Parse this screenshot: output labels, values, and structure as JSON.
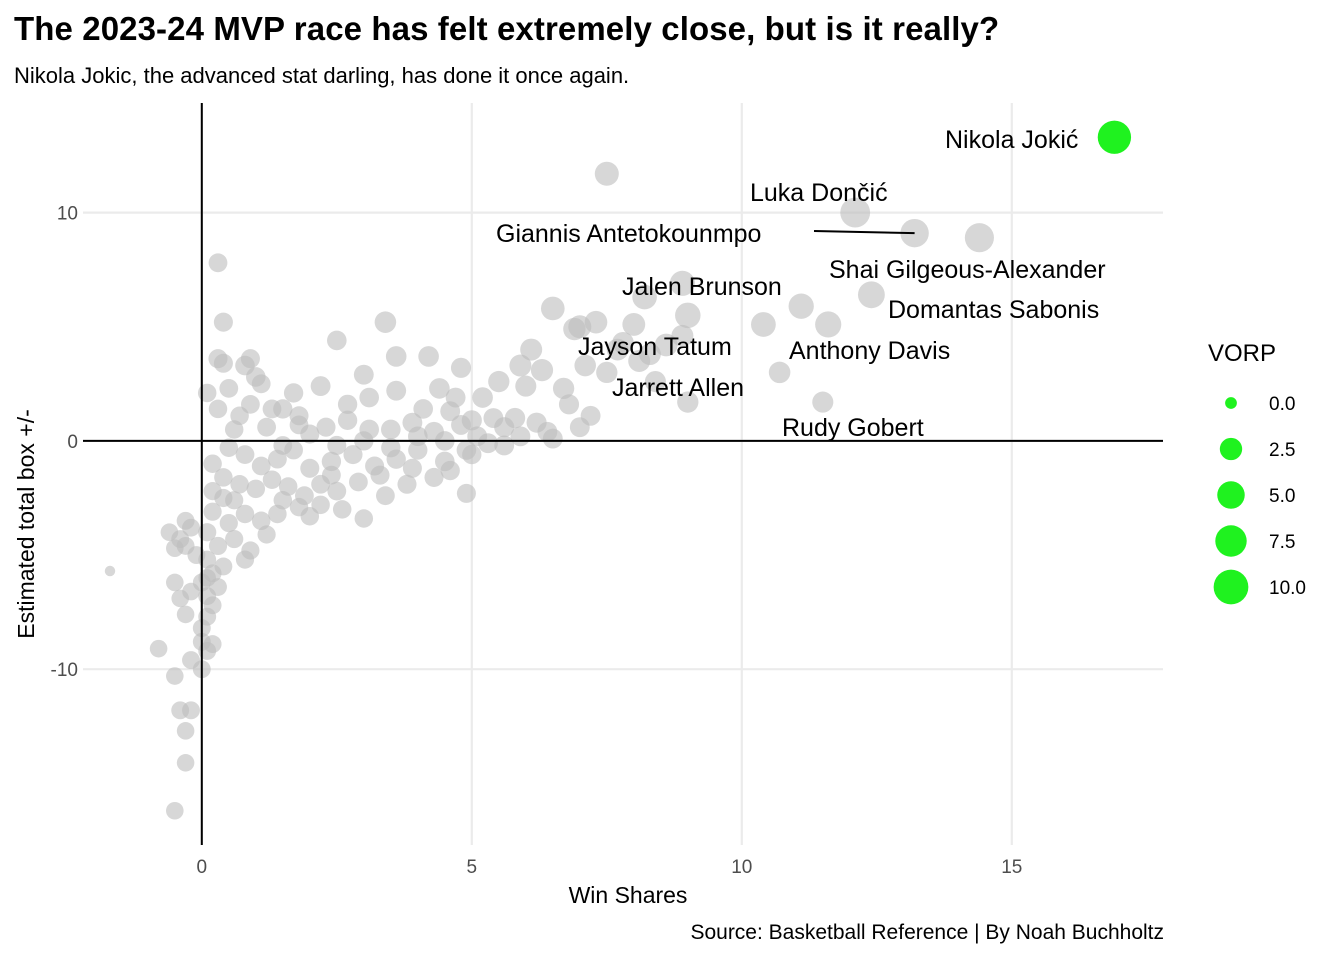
{
  "title": "The 2023-24 MVP race has felt extremely close, but is it really?",
  "subtitle": "Nikola Jokic, the advanced stat darling, has done it once again.",
  "caption": "Source: Basketball Reference | By Noah Buchholtz",
  "chart_data": {
    "type": "scatter",
    "xlabel": "Win Shares",
    "ylabel": "Estimated total box +/-",
    "xlim": [
      -2.2,
      17.8
    ],
    "ylim": [
      -17.7,
      14.8
    ],
    "xticks": [
      0,
      5,
      10,
      15
    ],
    "yticks": [
      -10,
      0,
      10
    ],
    "grid": true,
    "reference_lines": {
      "x": 0,
      "y": 0
    },
    "size_legend": {
      "title": "VORP",
      "entries": [
        {
          "label": "0.0",
          "value": 0.0
        },
        {
          "label": "2.5",
          "value": 2.5
        },
        {
          "label": "5.0",
          "value": 5.0
        },
        {
          "label": "7.5",
          "value": 7.5
        },
        {
          "label": "10.0",
          "value": 10.0
        }
      ],
      "position": "right"
    },
    "colors": {
      "highlight": "#1ff21f",
      "others": "#bdbdbd",
      "grid": "#ebebeb",
      "axis_line": "#000000"
    },
    "highlight": [
      {
        "name": "Nikola Jokić",
        "x": 16.9,
        "y": 13.3,
        "vorp": 10.5
      }
    ],
    "labeled_players": [
      {
        "name": "Luka Dončić",
        "x": 12.1,
        "y": 10.0,
        "vorp": 7.8
      },
      {
        "name": "Giannis Antetokounmpo",
        "x": 13.2,
        "y": 9.1,
        "vorp": 6.8
      },
      {
        "name": "Shai Gilgeous-Alexander",
        "x": 14.4,
        "y": 8.9,
        "vorp": 7.3
      },
      {
        "name": "Domantas Sabonis",
        "x": 12.4,
        "y": 6.4,
        "vorp": 5.8
      },
      {
        "name": "Jalen Brunson",
        "x": 8.9,
        "y": 6.9,
        "vorp": 4.8
      },
      {
        "name": "Anthony Davis",
        "x": 11.6,
        "y": 5.1,
        "vorp": 5.4
      },
      {
        "name": "Jayson Tatum",
        "x": 9.0,
        "y": 5.5,
        "vorp": 5.0
      },
      {
        "name": "Jarrett Allen",
        "x": 9.0,
        "y": 1.7,
        "vorp": 2.9
      },
      {
        "name": "Rudy Gobert",
        "x": 11.5,
        "y": 1.7,
        "vorp": 2.8
      }
    ],
    "other_players": [
      [
        7.5,
        11.7,
        4.2
      ],
      [
        8.2,
        6.3,
        4.5
      ],
      [
        8.0,
        5.1,
        3.6
      ],
      [
        11.1,
        5.9,
        4.9
      ],
      [
        10.4,
        5.1,
        4.6
      ],
      [
        10.7,
        3.0,
        3.0
      ],
      [
        6.5,
        5.8,
        4.0
      ],
      [
        7.0,
        5.0,
        3.7
      ],
      [
        7.3,
        5.2,
        3.5
      ],
      [
        8.6,
        4.2,
        3.6
      ],
      [
        7.8,
        4.3,
        3.0
      ],
      [
        8.1,
        3.5,
        3.2
      ],
      [
        7.5,
        3.0,
        2.9
      ],
      [
        8.4,
        2.6,
        2.8
      ],
      [
        8.9,
        4.6,
        3.2
      ],
      [
        6.9,
        4.9,
        3.4
      ],
      [
        7.1,
        3.3,
        3.0
      ],
      [
        6.7,
        2.3,
        2.9
      ],
      [
        8.3,
        3.8,
        3.1
      ],
      [
        7.7,
        4.0,
        3.1
      ],
      [
        6.1,
        4.0,
        3.2
      ],
      [
        6.3,
        3.1,
        3.3
      ],
      [
        5.9,
        3.3,
        3.2
      ],
      [
        6.0,
        2.4,
        2.8
      ],
      [
        5.5,
        2.6,
        2.9
      ],
      [
        5.2,
        1.9,
        2.6
      ],
      [
        5.8,
        1.0,
        2.5
      ],
      [
        6.2,
        0.8,
        2.4
      ],
      [
        6.8,
        1.6,
        2.4
      ],
      [
        7.2,
        1.1,
        2.3
      ],
      [
        5.0,
        0.9,
        2.4
      ],
      [
        4.6,
        1.3,
        2.3
      ],
      [
        4.8,
        3.2,
        2.4
      ],
      [
        4.4,
        2.3,
        2.6
      ],
      [
        4.2,
        3.7,
        2.6
      ],
      [
        3.6,
        3.7,
        2.6
      ],
      [
        3.4,
        5.2,
        3.0
      ],
      [
        2.5,
        4.4,
        2.2
      ],
      [
        3.0,
        2.9,
        2.3
      ],
      [
        2.2,
        2.4,
        2.3
      ],
      [
        1.7,
        2.1,
        2.1
      ],
      [
        1.5,
        1.4,
        2.1
      ],
      [
        1.0,
        2.8,
        2.2
      ],
      [
        0.8,
        3.3,
        2.2
      ],
      [
        0.3,
        3.6,
        2.0
      ],
      [
        0.4,
        3.4,
        2.0
      ],
      [
        0.9,
        3.6,
        2.0
      ],
      [
        1.1,
        2.5,
        1.9
      ],
      [
        0.4,
        5.2,
        2.0
      ],
      [
        0.3,
        7.8,
        1.9
      ],
      [
        0.1,
        2.1,
        1.8
      ],
      [
        0.3,
        1.4,
        1.8
      ],
      [
        0.7,
        1.1,
        1.8
      ],
      [
        1.3,
        1.4,
        1.9
      ],
      [
        1.8,
        1.1,
        2.0
      ],
      [
        2.3,
        0.6,
        2.0
      ],
      [
        2.7,
        0.9,
        2.1
      ],
      [
        3.1,
        0.5,
        2.2
      ],
      [
        3.5,
        0.5,
        2.2
      ],
      [
        3.9,
        0.8,
        2.3
      ],
      [
        4.3,
        0.4,
        2.3
      ],
      [
        4.8,
        0.7,
        2.3
      ],
      [
        5.1,
        0.2,
        2.3
      ],
      [
        5.6,
        0.6,
        2.4
      ],
      [
        6.4,
        0.4,
        2.3
      ],
      [
        7.0,
        0.6,
        2.3
      ],
      [
        5.6,
        -0.2,
        2.3
      ],
      [
        5.0,
        -0.6,
        2.1
      ],
      [
        4.5,
        -0.9,
        2.2
      ],
      [
        4.0,
        -0.4,
        2.1
      ],
      [
        3.6,
        -0.8,
        2.1
      ],
      [
        3.2,
        -1.1,
        2.0
      ],
      [
        2.8,
        -0.6,
        2.0
      ],
      [
        2.4,
        -0.9,
        2.1
      ],
      [
        2.0,
        -1.2,
        2.0
      ],
      [
        1.7,
        -0.4,
        1.9
      ],
      [
        1.4,
        -0.8,
        1.9
      ],
      [
        1.1,
        -1.1,
        1.9
      ],
      [
        0.8,
        -0.6,
        1.9
      ],
      [
        0.5,
        -0.3,
        1.8
      ],
      [
        0.2,
        -1.0,
        1.8
      ],
      [
        0.4,
        -1.6,
        1.8
      ],
      [
        0.7,
        -1.9,
        1.8
      ],
      [
        1.0,
        -2.1,
        1.8
      ],
      [
        1.3,
        -1.7,
        1.8
      ],
      [
        1.6,
        -2.0,
        1.8
      ],
      [
        1.9,
        -2.4,
        1.9
      ],
      [
        2.2,
        -1.9,
        1.9
      ],
      [
        2.5,
        -2.2,
        1.9
      ],
      [
        2.9,
        -1.8,
        1.9
      ],
      [
        3.3,
        -1.5,
        2.0
      ],
      [
        3.8,
        -1.9,
        2.0
      ],
      [
        4.3,
        -1.6,
        2.0
      ],
      [
        4.9,
        -2.3,
        2.0
      ],
      [
        3.0,
        -3.4,
        1.8
      ],
      [
        2.6,
        -3.0,
        1.8
      ],
      [
        2.2,
        -2.8,
        1.8
      ],
      [
        1.8,
        -2.9,
        1.8
      ],
      [
        1.4,
        -3.2,
        1.8
      ],
      [
        1.1,
        -3.5,
        1.8
      ],
      [
        0.8,
        -3.2,
        1.8
      ],
      [
        0.5,
        -3.6,
        1.7
      ],
      [
        0.2,
        -3.1,
        1.7
      ],
      [
        0.1,
        -4.0,
        1.7
      ],
      [
        0.3,
        -4.6,
        1.7
      ],
      [
        0.6,
        -4.3,
        1.7
      ],
      [
        0.9,
        -4.8,
        1.7
      ],
      [
        1.2,
        -4.1,
        1.7
      ],
      [
        0.1,
        -5.2,
        1.6
      ],
      [
        0.2,
        -5.8,
        1.6
      ],
      [
        0.4,
        -5.5,
        1.6
      ],
      [
        0.8,
        -5.2,
        1.7
      ],
      [
        -0.1,
        -5.0,
        1.6
      ],
      [
        -0.2,
        -3.8,
        1.6
      ],
      [
        -0.3,
        -3.5,
        1.6
      ],
      [
        -0.4,
        -4.3,
        1.6
      ],
      [
        -0.3,
        -4.6,
        1.6
      ],
      [
        0.0,
        -6.2,
        1.6
      ],
      [
        0.1,
        -6.8,
        1.6
      ],
      [
        0.2,
        -7.2,
        1.6
      ],
      [
        0.1,
        -7.7,
        1.6
      ],
      [
        0.0,
        -8.2,
        1.6
      ],
      [
        0.0,
        -8.8,
        1.6
      ],
      [
        0.1,
        -9.2,
        1.6
      ],
      [
        -0.2,
        -9.6,
        1.6
      ],
      [
        0.0,
        -10.0,
        1.6
      ],
      [
        0.1,
        -6.0,
        1.5
      ],
      [
        -0.4,
        -6.9,
        1.5
      ],
      [
        -0.5,
        -6.2,
        1.5
      ],
      [
        -0.8,
        -9.1,
        1.5
      ],
      [
        -0.3,
        -7.6,
        1.5
      ],
      [
        0.3,
        -6.4,
        1.6
      ],
      [
        -0.5,
        -10.3,
        1.5
      ],
      [
        -0.4,
        -11.8,
        1.6
      ],
      [
        -0.2,
        -11.8,
        1.6
      ],
      [
        -0.3,
        -12.7,
        1.5
      ],
      [
        -0.3,
        -14.1,
        1.5
      ],
      [
        -0.5,
        -16.2,
        1.5
      ],
      [
        -0.6,
        -4.0,
        1.5
      ],
      [
        -0.5,
        -4.7,
        1.5
      ],
      [
        -1.7,
        -5.7,
        0.1
      ],
      [
        -0.2,
        -6.6,
        1.5
      ],
      [
        0.2,
        -8.9,
        1.6
      ],
      [
        0.4,
        -2.5,
        1.7
      ],
      [
        1.5,
        -0.2,
        1.9
      ],
      [
        2.0,
        0.3,
        2.0
      ],
      [
        2.5,
        -0.2,
        2.0
      ],
      [
        3.0,
        0.0,
        2.1
      ],
      [
        3.5,
        -0.3,
        2.1
      ],
      [
        4.0,
        0.2,
        2.2
      ],
      [
        4.5,
        0.0,
        2.2
      ],
      [
        5.3,
        -0.1,
        2.3
      ],
      [
        5.9,
        0.2,
        2.3
      ],
      [
        6.5,
        0.1,
        2.3
      ],
      [
        1.2,
        0.6,
        1.9
      ],
      [
        1.8,
        0.7,
        1.9
      ],
      [
        2.7,
        1.6,
        2.1
      ],
      [
        3.1,
        1.9,
        2.2
      ],
      [
        3.6,
        2.2,
        2.3
      ],
      [
        4.1,
        1.4,
        2.2
      ],
      [
        4.7,
        1.9,
        2.3
      ],
      [
        5.4,
        1.0,
        2.3
      ],
      [
        0.6,
        0.5,
        1.8
      ],
      [
        0.9,
        1.6,
        1.9
      ],
      [
        0.5,
        2.3,
        1.9
      ],
      [
        0.2,
        -2.2,
        1.7
      ],
      [
        0.6,
        -2.6,
        1.7
      ],
      [
        1.5,
        -2.6,
        1.8
      ],
      [
        2.0,
        -3.3,
        1.8
      ],
      [
        2.4,
        -1.5,
        1.9
      ],
      [
        3.9,
        -1.2,
        2.0
      ],
      [
        4.6,
        -1.3,
        2.1
      ],
      [
        4.9,
        -0.4,
        2.2
      ],
      [
        3.4,
        -2.4,
        1.9
      ]
    ]
  }
}
